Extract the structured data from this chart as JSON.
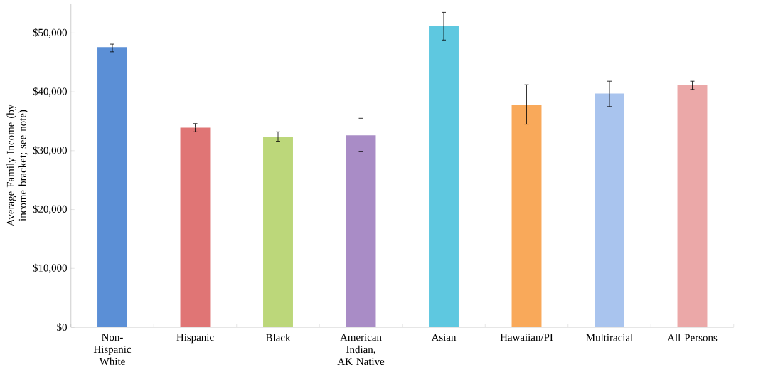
{
  "chart_data": {
    "type": "bar",
    "ylabel": "Average Family Income (by income bracket; see note)",
    "categories": [
      "Non-Hispanic White",
      "Hispanic",
      "Black",
      "American Indian, AK Native",
      "Asian",
      "Hawaiian/PI",
      "Multiracial",
      "All Persons"
    ],
    "values": [
      47600,
      33900,
      32300,
      32600,
      51200,
      37800,
      39700,
      41200
    ],
    "errors": [
      [
        46800,
        48100
      ],
      [
        33200,
        34600
      ],
      [
        31600,
        33200
      ],
      [
        29900,
        35500
      ],
      [
        48800,
        53500
      ],
      [
        34500,
        41200
      ],
      [
        37500,
        41800
      ],
      [
        40400,
        41800
      ]
    ],
    "colors": [
      "#5b8fd6",
      "#e07575",
      "#bcd77a",
      "#a98cc6",
      "#5ec8e0",
      "#f9a95a",
      "#a9c4ee",
      "#eba8a8"
    ],
    "ylim": [
      0,
      55000
    ],
    "yticks": [
      {
        "value": 0,
        "label": "$0"
      },
      {
        "value": 10000,
        "label": "$10,000"
      },
      {
        "value": 20000,
        "label": "$20,000"
      },
      {
        "value": 30000,
        "label": "$30,000"
      },
      {
        "value": 40000,
        "label": "$40,000"
      },
      {
        "value": 50000,
        "label": "$50,000"
      }
    ],
    "grid": false
  }
}
